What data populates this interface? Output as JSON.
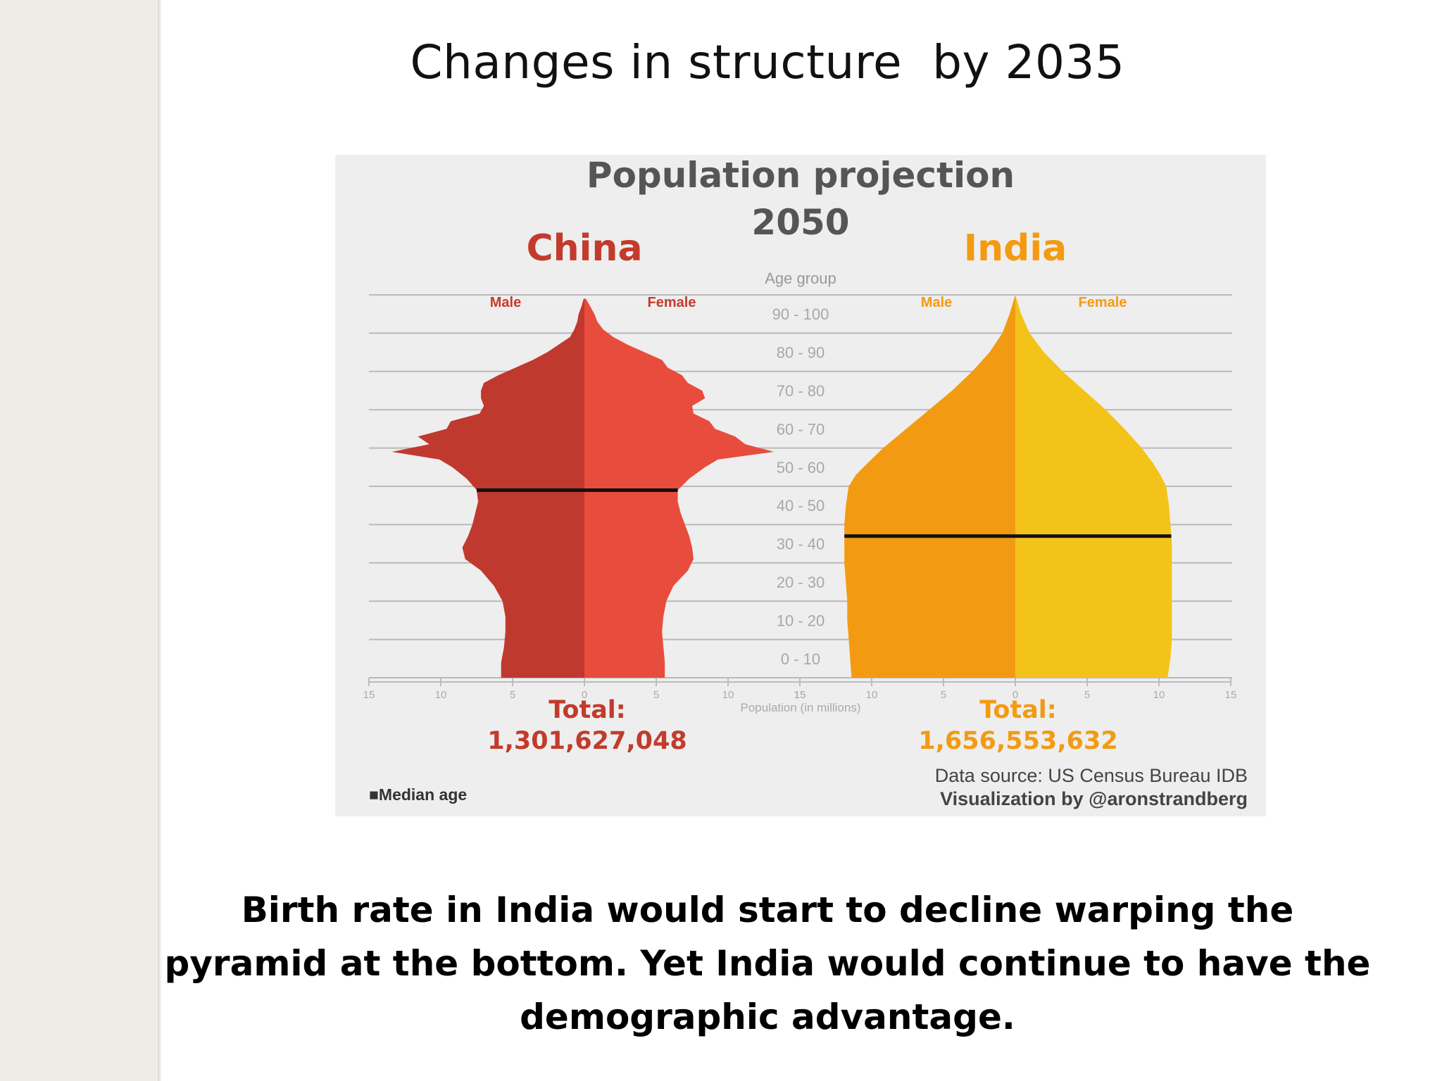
{
  "slide": {
    "title": "Changes in structure  by 2035",
    "caption": "Birth rate in India would start to decline warping the pyramid at the bottom. Yet India would continue to have the demographic advantage."
  },
  "chart_data": {
    "type": "population-pyramid",
    "title_line1": "Population projection",
    "title_line2": "2050",
    "center_axis_label": "Age group",
    "x_axis_label": "Population (in millions)",
    "age_groups": [
      "0 - 10",
      "10 - 20",
      "20 - 30",
      "30 - 40",
      "40 - 50",
      "50 - 60",
      "60 - 70",
      "70 - 80",
      "80 - 90",
      "90 - 100"
    ],
    "age_range": [
      0,
      100
    ],
    "x_ticks": [
      "15",
      "10",
      "5",
      "0",
      "5",
      "10",
      "15"
    ],
    "x_range_millions": [
      0,
      15
    ],
    "panels": [
      {
        "country": "China",
        "color_title": "#c23b2c",
        "color_male": "#c0392e",
        "color_female": "#e84c3d",
        "male_label": "Male",
        "female_label": "Female",
        "total_label": "Total:",
        "total_value": "1,301,627,048",
        "median_age": 49,
        "profile": [
          {
            "age": 0,
            "male": 5.8,
            "female": 5.6
          },
          {
            "age": 4,
            "male": 5.8,
            "female": 5.6
          },
          {
            "age": 8,
            "male": 5.6,
            "female": 5.5
          },
          {
            "age": 12,
            "male": 5.5,
            "female": 5.4
          },
          {
            "age": 16,
            "male": 5.5,
            "female": 5.5
          },
          {
            "age": 20,
            "male": 5.7,
            "female": 5.7
          },
          {
            "age": 24,
            "male": 6.3,
            "female": 6.2
          },
          {
            "age": 28,
            "male": 7.2,
            "female": 7.2
          },
          {
            "age": 31,
            "male": 8.3,
            "female": 7.6
          },
          {
            "age": 34,
            "male": 8.5,
            "female": 7.5
          },
          {
            "age": 37,
            "male": 8.1,
            "female": 7.3
          },
          {
            "age": 40,
            "male": 7.8,
            "female": 7.0
          },
          {
            "age": 43,
            "male": 7.6,
            "female": 6.7
          },
          {
            "age": 46,
            "male": 7.4,
            "female": 6.5
          },
          {
            "age": 49,
            "male": 7.5,
            "female": 6.5
          },
          {
            "age": 52,
            "male": 8.2,
            "female": 7.3
          },
          {
            "age": 55,
            "male": 9.2,
            "female": 8.4
          },
          {
            "age": 57,
            "male": 10.1,
            "female": 9.3
          },
          {
            "age": 59,
            "male": 13.4,
            "female": 13.2
          },
          {
            "age": 61,
            "male": 10.8,
            "female": 11.2
          },
          {
            "age": 63,
            "male": 11.6,
            "female": 10.5
          },
          {
            "age": 65,
            "male": 9.6,
            "female": 9.1
          },
          {
            "age": 67,
            "male": 9.3,
            "female": 8.7
          },
          {
            "age": 69,
            "male": 7.3,
            "female": 7.6
          },
          {
            "age": 71,
            "male": 7.0,
            "female": 7.5
          },
          {
            "age": 73,
            "male": 7.2,
            "female": 8.4
          },
          {
            "age": 75,
            "male": 7.2,
            "female": 8.2
          },
          {
            "age": 77,
            "male": 7.0,
            "female": 7.2
          },
          {
            "age": 79,
            "male": 6.0,
            "female": 6.8
          },
          {
            "age": 81,
            "male": 4.8,
            "female": 5.8
          },
          {
            "age": 83,
            "male": 3.6,
            "female": 5.4
          },
          {
            "age": 85,
            "male": 2.6,
            "female": 4.2
          },
          {
            "age": 87,
            "male": 1.8,
            "female": 3.0
          },
          {
            "age": 89,
            "male": 1.0,
            "female": 2.0
          },
          {
            "age": 91,
            "male": 0.7,
            "female": 1.3
          },
          {
            "age": 93,
            "male": 0.5,
            "female": 0.9
          },
          {
            "age": 95,
            "male": 0.4,
            "female": 0.7
          },
          {
            "age": 97,
            "male": 0.2,
            "female": 0.4
          },
          {
            "age": 99,
            "male": 0.05,
            "female": 0.1
          }
        ]
      },
      {
        "country": "India",
        "color_title": "#f29b12",
        "color_male": "#f29b12",
        "color_female": "#f4c319",
        "male_label": "Male",
        "female_label": "Female",
        "total_label": "Total:",
        "total_value": "1,656,553,632",
        "median_age": 37,
        "profile": [
          {
            "age": 0,
            "male": 11.4,
            "female": 10.6
          },
          {
            "age": 5,
            "male": 11.5,
            "female": 10.8
          },
          {
            "age": 10,
            "male": 11.6,
            "female": 10.9
          },
          {
            "age": 15,
            "male": 11.7,
            "female": 10.9
          },
          {
            "age": 20,
            "male": 11.7,
            "female": 10.9
          },
          {
            "age": 25,
            "male": 11.8,
            "female": 10.9
          },
          {
            "age": 30,
            "male": 11.9,
            "female": 10.9
          },
          {
            "age": 35,
            "male": 11.9,
            "female": 10.9
          },
          {
            "age": 40,
            "male": 11.9,
            "female": 10.8
          },
          {
            "age": 45,
            "male": 11.8,
            "female": 10.7
          },
          {
            "age": 50,
            "male": 11.6,
            "female": 10.5
          },
          {
            "age": 53,
            "male": 11.1,
            "female": 10.1
          },
          {
            "age": 56,
            "male": 10.3,
            "female": 9.6
          },
          {
            "age": 60,
            "male": 9.2,
            "female": 8.8
          },
          {
            "age": 65,
            "male": 7.6,
            "female": 7.6
          },
          {
            "age": 70,
            "male": 6.0,
            "female": 6.3
          },
          {
            "age": 75,
            "male": 4.4,
            "female": 4.8
          },
          {
            "age": 80,
            "male": 3.0,
            "female": 3.3
          },
          {
            "age": 85,
            "male": 1.8,
            "female": 2.0
          },
          {
            "age": 90,
            "male": 0.9,
            "female": 1.0
          },
          {
            "age": 95,
            "male": 0.4,
            "female": 0.4
          },
          {
            "age": 100,
            "male": 0.0,
            "female": 0.0
          }
        ]
      }
    ],
    "legend": "Median age",
    "source_line": "Data source: US Census Bureau IDB",
    "credit_line": "Visualization by @aronstrandberg"
  }
}
